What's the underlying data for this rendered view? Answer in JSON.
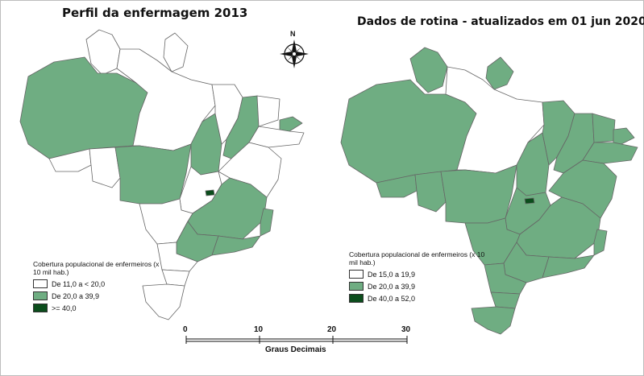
{
  "left_map": {
    "title": "Perfil da enfermagem 2013",
    "legend": {
      "title": "Cobertura populacional de enfermeiros (x 10 mil hab.)",
      "items": [
        {
          "label": "De 11,0 a < 20,0",
          "color": "#ffffff"
        },
        {
          "label": "De 20,0 a 39,9",
          "color": "#6fad82"
        },
        {
          "label": ">= 40,0",
          "color": "#0b4d1c"
        }
      ]
    }
  },
  "right_map": {
    "title": "Dados de rotina - atualizados em 01 jun 2020",
    "legend": {
      "title": "Cobertura populacional de enfermeiros (x 10 mil hab.)",
      "items": [
        {
          "label": "De 15,0 a 19,9",
          "color": "#ffffff"
        },
        {
          "label": "De 20,0 a 39,9",
          "color": "#6fad82"
        },
        {
          "label": "De 40,0 a 52,0",
          "color": "#0b4d1c"
        }
      ]
    }
  },
  "compass": {
    "label": "N",
    "icon": "compass-rose-icon"
  },
  "scale_bar": {
    "ticks": [
      "0",
      "10",
      "20",
      "30"
    ],
    "unit_label": "Graus Decimais"
  }
}
